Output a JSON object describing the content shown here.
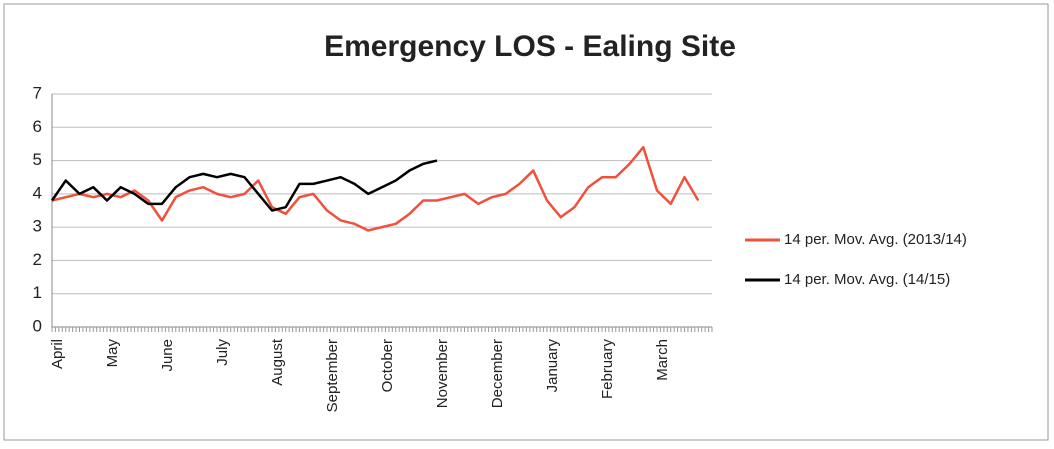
{
  "chart_data": {
    "type": "line",
    "title": "Emergency LOS - Ealing Site",
    "categories": [
      "April",
      null,
      null,
      null,
      "May",
      null,
      null,
      null,
      "June",
      null,
      null,
      null,
      "July",
      null,
      null,
      null,
      "August",
      null,
      null,
      null,
      "September",
      null,
      null,
      null,
      "October",
      null,
      null,
      null,
      "November",
      null,
      null,
      null,
      "December",
      null,
      null,
      null,
      "January",
      null,
      null,
      null,
      "February",
      null,
      null,
      null,
      "March",
      null,
      null,
      null
    ],
    "series": [
      {
        "name": "14 per. Mov. Avg. (2013/14)",
        "color": "#f0503c",
        "values": [
          3.8,
          3.9,
          4.0,
          3.9,
          4.0,
          3.9,
          4.1,
          3.8,
          3.2,
          3.9,
          4.1,
          4.2,
          4.0,
          3.9,
          4.0,
          4.4,
          3.6,
          3.4,
          3.9,
          4.0,
          3.5,
          3.2,
          3.1,
          2.9,
          3.0,
          3.1,
          3.4,
          3.8,
          3.8,
          3.9,
          4.0,
          3.7,
          3.9,
          4.0,
          4.3,
          4.7,
          3.8,
          3.3,
          3.6,
          4.2,
          4.5,
          4.5,
          4.9,
          5.4,
          4.1,
          3.7,
          4.5,
          3.8
        ]
      },
      {
        "name": "14 per. Mov. Avg. (14/15)",
        "color": "#000000",
        "values": [
          3.8,
          4.4,
          4.0,
          4.2,
          3.8,
          4.2,
          4.0,
          3.7,
          3.7,
          4.2,
          4.5,
          4.6,
          4.5,
          4.6,
          4.5,
          4.0,
          3.5,
          3.6,
          4.3,
          4.3,
          4.4,
          4.5,
          4.3,
          4.0,
          4.2,
          4.4,
          4.7,
          4.9,
          5.0,
          null,
          null,
          null,
          null,
          null,
          null,
          null,
          null,
          null,
          null,
          null,
          null,
          null,
          null,
          null,
          null,
          null,
          null,
          null
        ]
      }
    ],
    "ylim": [
      0,
      7
    ],
    "yticks": [
      0,
      1,
      2,
      3,
      4,
      5,
      6,
      7
    ],
    "grid": true,
    "legend": "right"
  }
}
